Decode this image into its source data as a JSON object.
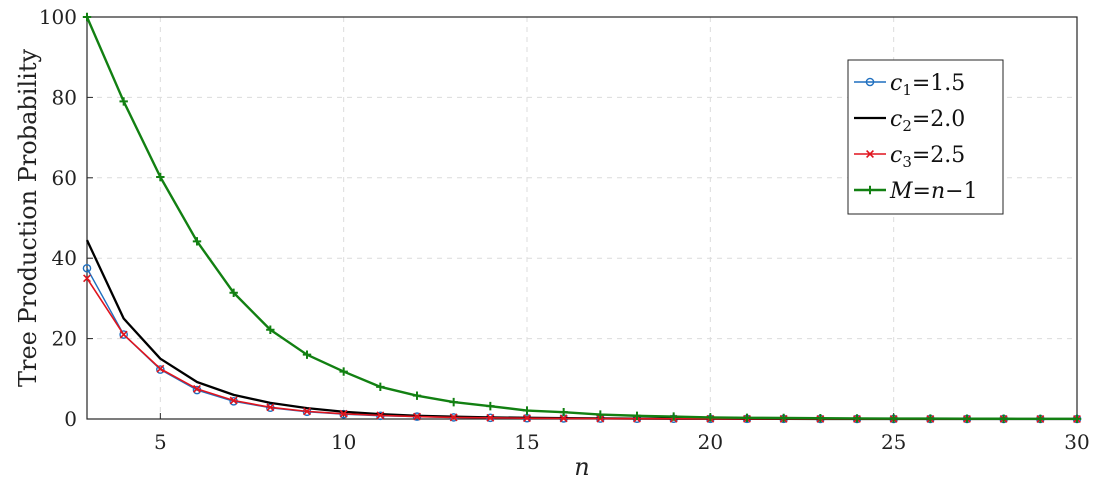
{
  "chart_data": {
    "type": "line",
    "title": "",
    "xlabel": "n",
    "ylabel": "Tree Production Probability",
    "xlim": [
      3,
      30
    ],
    "ylim": [
      0,
      100
    ],
    "xticks": [
      5,
      10,
      15,
      20,
      25,
      30
    ],
    "yticks": [
      0,
      20,
      40,
      60,
      80,
      100
    ],
    "grid": true,
    "legend_position": "top-right",
    "x": [
      3,
      4,
      5,
      6,
      7,
      8,
      9,
      10,
      11,
      12,
      13,
      14,
      15,
      16,
      17,
      18,
      19,
      20,
      21,
      22,
      23,
      24,
      25,
      26,
      27,
      28,
      29,
      30
    ],
    "series": [
      {
        "name": "c1 = 1.5",
        "legend_symbol": "c",
        "legend_sub": "1",
        "legend_value": "1.5",
        "color": "#1f6fbf",
        "marker": "circle",
        "values": [
          37.5,
          21.0,
          12.3,
          7.2,
          4.4,
          2.8,
          1.8,
          1.2,
          0.8,
          0.6,
          0.4,
          0.3,
          0.2,
          0.15,
          0.1,
          0.08,
          0.06,
          0.05,
          0.04,
          0.03,
          0.02,
          0.02,
          0.01,
          0.01,
          0.01,
          0.01,
          0.0,
          0.0
        ]
      },
      {
        "name": "c2 = 2.0",
        "legend_symbol": "c",
        "legend_sub": "2",
        "legend_value": "2.0",
        "color": "#000000",
        "marker": "none",
        "values": [
          44.5,
          25.0,
          15.0,
          9.2,
          6.0,
          4.0,
          2.7,
          1.8,
          1.2,
          0.8,
          0.6,
          0.4,
          0.3,
          0.2,
          0.15,
          0.1,
          0.08,
          0.06,
          0.04,
          0.03,
          0.02,
          0.02,
          0.01,
          0.01,
          0.01,
          0.01,
          0.0,
          0.0
        ]
      },
      {
        "name": "c3 = 2.5",
        "legend_symbol": "c",
        "legend_sub": "3",
        "legend_value": "2.5",
        "color": "#e0141e",
        "marker": "x",
        "values": [
          35.0,
          21.0,
          12.5,
          7.5,
          4.6,
          2.9,
          1.9,
          1.3,
          0.9,
          0.6,
          0.4,
          0.3,
          0.2,
          0.15,
          0.1,
          0.08,
          0.06,
          0.05,
          0.04,
          0.03,
          0.02,
          0.02,
          0.01,
          0.01,
          0.01,
          0.01,
          0.0,
          0.0
        ]
      },
      {
        "name": "M = n − 1",
        "legend_symbol": "M",
        "legend_sub": "",
        "legend_value": "n−1",
        "color": "#128012",
        "marker": "plus",
        "values": [
          100.0,
          79.0,
          60.2,
          44.2,
          31.4,
          22.2,
          16.0,
          11.8,
          8.0,
          5.8,
          4.2,
          3.2,
          2.1,
          1.7,
          1.1,
          0.8,
          0.6,
          0.4,
          0.3,
          0.25,
          0.2,
          0.15,
          0.1,
          0.1,
          0.08,
          0.06,
          0.05,
          0.04
        ]
      }
    ]
  }
}
